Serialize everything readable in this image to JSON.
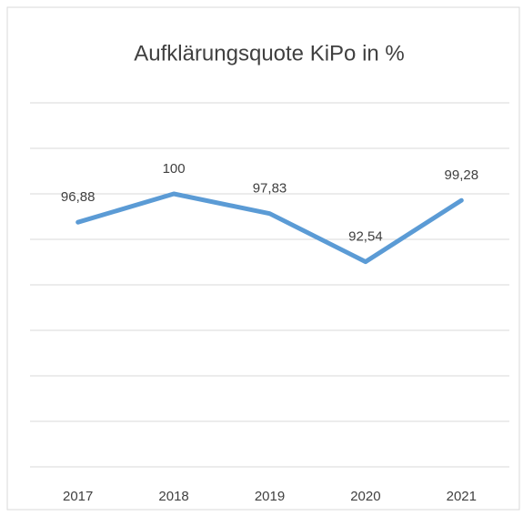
{
  "chart_data": {
    "type": "line",
    "title": "Aufklärungsquote KiPo in %",
    "categories": [
      "2017",
      "2018",
      "2019",
      "2020",
      "2021"
    ],
    "series": [
      {
        "color": "#5b9bd5",
        "values": [
          96.88,
          100,
          97.83,
          92.54,
          99.28
        ],
        "value_labels": [
          "96,88",
          "100",
          "97,83",
          "92,54",
          "99,28"
        ]
      }
    ],
    "ylim": [
      70,
      110
    ],
    "yticks": [
      70,
      75,
      80,
      85,
      90,
      95,
      100,
      105,
      110
    ],
    "grid": true
  }
}
